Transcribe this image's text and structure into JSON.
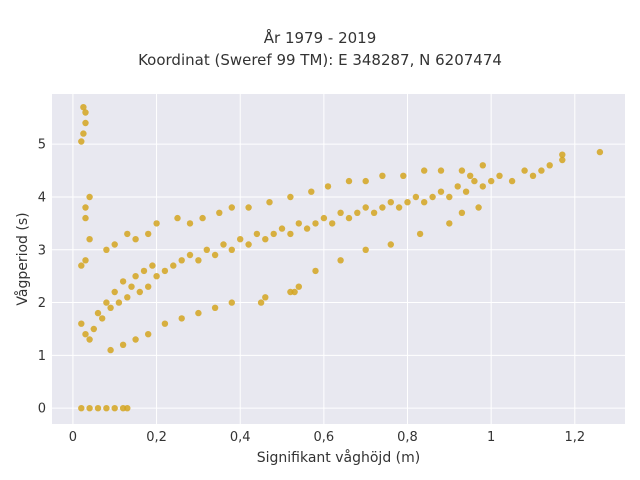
{
  "chart_data": {
    "type": "scatter",
    "title": "År 1979 - 2019",
    "subtitle": "Koordinat (Sweref 99 TM): E 348287, N 6207474",
    "xlabel": "Signifikant våghöjd (m)",
    "ylabel": "Vågperiod (s)",
    "xlim": [
      -0.05,
      1.32
    ],
    "ylim": [
      -0.3,
      5.95
    ],
    "xticks": [
      0,
      0.2,
      0.4,
      0.6,
      0.8,
      1,
      1.2
    ],
    "xtick_labels": [
      "0",
      "0,2",
      "0,4",
      "0,6",
      "0,8",
      "1",
      "1,2"
    ],
    "yticks": [
      0,
      1,
      2,
      3,
      4,
      5
    ],
    "ytick_labels": [
      "0",
      "1",
      "2",
      "3",
      "4",
      "5"
    ],
    "grid": true,
    "background": "#e8e8f0",
    "marker_color": "#d4a520",
    "series": [
      {
        "points": [
          [
            0.02,
            1.6
          ],
          [
            0.03,
            1.4
          ],
          [
            0.04,
            1.3
          ],
          [
            0.05,
            1.5
          ],
          [
            0.06,
            1.8
          ],
          [
            0.07,
            1.7
          ],
          [
            0.08,
            2.0
          ],
          [
            0.09,
            1.9
          ],
          [
            0.1,
            2.2
          ],
          [
            0.11,
            2.0
          ],
          [
            0.12,
            2.4
          ],
          [
            0.13,
            2.1
          ],
          [
            0.14,
            2.3
          ],
          [
            0.15,
            2.5
          ],
          [
            0.16,
            2.2
          ],
          [
            0.17,
            2.6
          ],
          [
            0.18,
            2.3
          ],
          [
            0.19,
            2.7
          ],
          [
            0.2,
            2.5
          ],
          [
            0.22,
            2.6
          ],
          [
            0.24,
            2.7
          ],
          [
            0.26,
            2.8
          ],
          [
            0.28,
            2.9
          ],
          [
            0.3,
            2.8
          ],
          [
            0.32,
            3.0
          ],
          [
            0.34,
            2.9
          ],
          [
            0.36,
            3.1
          ],
          [
            0.38,
            3.0
          ],
          [
            0.4,
            3.2
          ],
          [
            0.42,
            3.1
          ],
          [
            0.44,
            3.3
          ],
          [
            0.46,
            3.2
          ],
          [
            0.48,
            3.3
          ],
          [
            0.5,
            3.4
          ],
          [
            0.52,
            3.3
          ],
          [
            0.54,
            3.5
          ],
          [
            0.56,
            3.4
          ],
          [
            0.58,
            3.5
          ],
          [
            0.6,
            3.6
          ],
          [
            0.62,
            3.5
          ],
          [
            0.64,
            3.7
          ],
          [
            0.66,
            3.6
          ],
          [
            0.68,
            3.7
          ],
          [
            0.7,
            3.8
          ],
          [
            0.72,
            3.7
          ],
          [
            0.74,
            3.8
          ],
          [
            0.76,
            3.9
          ],
          [
            0.78,
            3.8
          ],
          [
            0.8,
            3.9
          ],
          [
            0.82,
            4.0
          ],
          [
            0.84,
            3.9
          ],
          [
            0.86,
            4.0
          ],
          [
            0.88,
            4.1
          ],
          [
            0.9,
            4.0
          ],
          [
            0.92,
            4.2
          ],
          [
            0.94,
            4.1
          ],
          [
            0.96,
            4.3
          ],
          [
            0.98,
            4.2
          ],
          [
            1.0,
            4.3
          ],
          [
            1.02,
            4.4
          ],
          [
            1.05,
            4.3
          ],
          [
            1.08,
            4.5
          ],
          [
            1.1,
            4.4
          ],
          [
            1.12,
            4.5
          ],
          [
            1.14,
            4.6
          ],
          [
            1.17,
            4.8
          ],
          [
            1.17,
            4.7
          ],
          [
            1.26,
            4.85
          ],
          [
            0.025,
            5.7
          ],
          [
            0.03,
            5.6
          ],
          [
            0.03,
            5.4
          ],
          [
            0.025,
            5.2
          ],
          [
            0.02,
            5.05
          ],
          [
            0.04,
            4.0
          ],
          [
            0.03,
            3.8
          ],
          [
            0.03,
            3.6
          ],
          [
            0.04,
            3.2
          ],
          [
            0.03,
            2.8
          ],
          [
            0.02,
            2.7
          ],
          [
            0.08,
            3.0
          ],
          [
            0.1,
            3.1
          ],
          [
            0.13,
            3.3
          ],
          [
            0.15,
            3.2
          ],
          [
            0.18,
            3.3
          ],
          [
            0.2,
            3.5
          ],
          [
            0.25,
            3.6
          ],
          [
            0.28,
            3.5
          ],
          [
            0.31,
            3.6
          ],
          [
            0.35,
            3.7
          ],
          [
            0.38,
            3.8
          ],
          [
            0.42,
            3.8
          ],
          [
            0.47,
            3.9
          ],
          [
            0.52,
            4.0
          ],
          [
            0.57,
            4.1
          ],
          [
            0.61,
            4.2
          ],
          [
            0.66,
            4.3
          ],
          [
            0.7,
            4.3
          ],
          [
            0.74,
            4.4
          ],
          [
            0.79,
            4.4
          ],
          [
            0.84,
            4.5
          ],
          [
            0.88,
            4.5
          ],
          [
            0.93,
            4.5
          ],
          [
            0.98,
            4.6
          ],
          [
            0.95,
            4.4
          ],
          [
            0.97,
            3.8
          ],
          [
            0.93,
            3.7
          ],
          [
            0.09,
            1.1
          ],
          [
            0.12,
            1.2
          ],
          [
            0.15,
            1.3
          ],
          [
            0.18,
            1.4
          ],
          [
            0.22,
            1.6
          ],
          [
            0.26,
            1.7
          ],
          [
            0.3,
            1.8
          ],
          [
            0.34,
            1.9
          ],
          [
            0.38,
            2.0
          ],
          [
            0.45,
            2.0
          ],
          [
            0.52,
            2.2
          ],
          [
            0.58,
            2.6
          ],
          [
            0.64,
            2.8
          ],
          [
            0.7,
            3.0
          ],
          [
            0.76,
            3.1
          ],
          [
            0.83,
            3.3
          ],
          [
            0.9,
            3.5
          ],
          [
            0.53,
            2.2
          ],
          [
            0.54,
            2.3
          ],
          [
            0.46,
            2.1
          ],
          [
            0.02,
            0
          ],
          [
            0.04,
            0
          ],
          [
            0.06,
            0
          ],
          [
            0.08,
            0
          ],
          [
            0.1,
            0
          ],
          [
            0.12,
            0
          ],
          [
            0.13,
            0
          ]
        ]
      }
    ]
  }
}
